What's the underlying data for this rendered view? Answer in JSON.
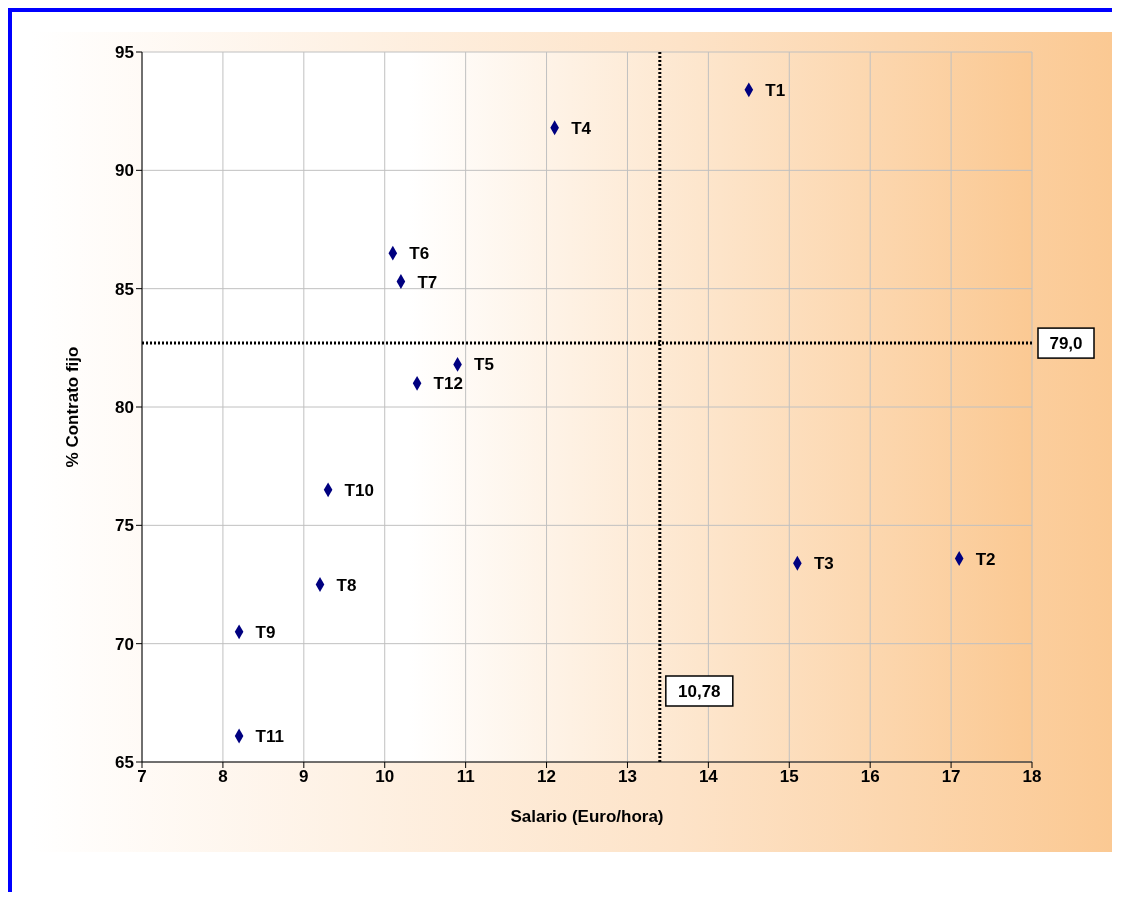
{
  "chart_data": {
    "type": "scatter",
    "xlabel": "Salario (Euro/hora)",
    "ylabel": "% Contrato fijo",
    "x": [
      14.5,
      17.1,
      15.1,
      12.1,
      10.9,
      10.1,
      10.2,
      9.2,
      8.2,
      9.3,
      8.2,
      10.4
    ],
    "values": [
      93.4,
      73.6,
      73.4,
      91.8,
      81.8,
      86.5,
      85.3,
      72.5,
      70.5,
      76.5,
      66.1,
      81.0
    ],
    "value_labels": [
      "T1",
      "T2",
      "T3",
      "T4",
      "T5",
      "T6",
      "T7",
      "T8",
      "T9",
      "T10",
      "T11",
      "T12"
    ],
    "color": "#000080",
    "marker": "diamond",
    "xlim": [
      7,
      18
    ],
    "xticks": [
      7,
      8,
      9,
      10,
      11,
      12,
      13,
      14,
      15,
      16,
      17,
      18
    ],
    "ylim": [
      65,
      95
    ],
    "yticks": [
      65,
      70,
      75,
      80,
      85,
      90,
      95
    ],
    "grid": true,
    "ref_lines": [
      {
        "axis": "y",
        "value": 82.7,
        "color": "#000000",
        "line_style": "dotted"
      },
      {
        "axis": "x",
        "value": 13.4,
        "color": "#000000",
        "line_style": "dotted"
      }
    ],
    "annotations": [
      {
        "text": "79,0",
        "x": 18,
        "y": 82.7
      },
      {
        "text": "10,78",
        "x": 13.4,
        "y": 68
      }
    ]
  }
}
